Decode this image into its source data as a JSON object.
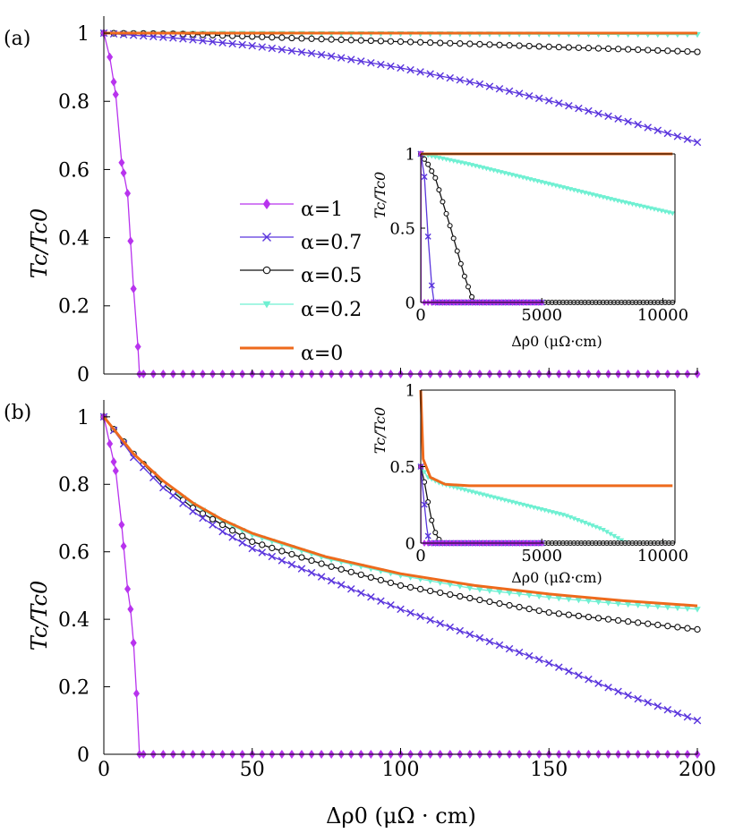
{
  "colors": {
    "a1": "#b833ee",
    "a07": "#5a35dd",
    "a05": "#111111",
    "a02": "#6ff0d2",
    "a0": "#ee6a1c"
  },
  "legend": [
    {
      "key": "a1",
      "label": "α=1",
      "marker": "diamond"
    },
    {
      "key": "a07",
      "label": "α=0.7",
      "marker": "x"
    },
    {
      "key": "a05",
      "label": "α=0.5",
      "marker": "circle"
    },
    {
      "key": "a02",
      "label": "α=0.2",
      "marker": "triangle"
    },
    {
      "key": "a0",
      "label": "α=0",
      "marker": "none"
    }
  ],
  "labels": {
    "panel_a": "(a)",
    "panel_b": "(b)",
    "ylabel": "Tc/Tc0",
    "xlabel": "Δρ0 (μΩ · cm)",
    "inset_ylabel": "Tc/Tc0",
    "inset_xlabel": "Δρ0 (μΩ·cm)"
  },
  "chart_data": [
    {
      "panel": "a",
      "type": "line",
      "xlim": [
        0,
        200
      ],
      "ylim": [
        0,
        1.05
      ],
      "xticks": [
        0,
        50,
        100,
        150,
        200
      ],
      "yticks": [
        0,
        0.2,
        0.4,
        0.6,
        0.8,
        1
      ],
      "xticklabels": [
        "0",
        "50",
        "100",
        "150",
        "200"
      ],
      "yticklabels": [
        "0",
        "0.2",
        "0.4",
        "0.6",
        "0.8",
        "1"
      ],
      "series": [
        {
          "key": "a1",
          "name": "α=1",
          "points": [
            [
              0,
              1.0
            ],
            [
              2,
              0.93
            ],
            [
              4,
              0.82
            ],
            [
              6,
              0.62
            ],
            [
              8,
              0.53
            ],
            [
              9,
              0.39
            ],
            [
              10,
              0.25
            ],
            [
              11.5,
              0.08
            ],
            [
              12,
              0.0
            ],
            [
              200,
              0.0
            ]
          ]
        },
        {
          "key": "a07",
          "name": "α=0.7",
          "points": [
            [
              0,
              1.0
            ],
            [
              25,
              0.985
            ],
            [
              50,
              0.963
            ],
            [
              75,
              0.935
            ],
            [
              100,
              0.898
            ],
            [
              125,
              0.854
            ],
            [
              150,
              0.802
            ],
            [
              175,
              0.745
            ],
            [
              200,
              0.68
            ]
          ]
        },
        {
          "key": "a05",
          "name": "α=0.5",
          "points": [
            [
              0,
              1.0
            ],
            [
              25,
              0.998
            ],
            [
              50,
              0.99
            ],
            [
              75,
              0.982
            ],
            [
              100,
              0.975
            ],
            [
              125,
              0.968
            ],
            [
              150,
              0.96
            ],
            [
              175,
              0.953
            ],
            [
              200,
              0.945
            ]
          ]
        },
        {
          "key": "a02",
          "name": "α=0.2",
          "points": [
            [
              0,
              1.0
            ],
            [
              50,
              0.999
            ],
            [
              100,
              0.998
            ],
            [
              150,
              0.997
            ],
            [
              200,
              0.996
            ]
          ]
        },
        {
          "key": "a0",
          "name": "α=0",
          "points": [
            [
              0,
              1.0
            ],
            [
              200,
              1.0
            ]
          ]
        }
      ]
    },
    {
      "panel": "a-inset",
      "type": "line",
      "xlim": [
        0,
        10500
      ],
      "ylim": [
        0,
        1.0
      ],
      "xticks": [
        0,
        5000,
        10000
      ],
      "yticks": [
        0,
        0.5,
        1
      ],
      "xticklabels": [
        "0",
        "5000",
        "10000"
      ],
      "yticklabels": [
        "0",
        "0.5",
        "1"
      ],
      "series": [
        {
          "key": "a1",
          "name": "α=1",
          "points": [
            [
              0,
              1.0
            ],
            [
              12,
              1.0
            ],
            [
              14,
              0.0
            ],
            [
              5000,
              0.0
            ]
          ]
        },
        {
          "key": "a07",
          "name": "α=0.7",
          "points": [
            [
              0,
              1.0
            ],
            [
              150,
              0.85
            ],
            [
              300,
              0.45
            ],
            [
              450,
              0.12
            ],
            [
              550,
              0.0
            ],
            [
              5000,
              0.0
            ]
          ]
        },
        {
          "key": "a05",
          "name": "α=0.5",
          "points": [
            [
              0,
              1.0
            ],
            [
              300,
              0.93
            ],
            [
              600,
              0.84
            ],
            [
              900,
              0.68
            ],
            [
              1200,
              0.52
            ],
            [
              1500,
              0.35
            ],
            [
              1800,
              0.18
            ],
            [
              2100,
              0.04
            ],
            [
              2250,
              0.0
            ],
            [
              10400,
              0.0
            ]
          ]
        },
        {
          "key": "a02",
          "name": "α=0.2",
          "points": [
            [
              0,
              1.0
            ],
            [
              2000,
              0.93
            ],
            [
              4000,
              0.85
            ],
            [
              6000,
              0.77
            ],
            [
              8000,
              0.69
            ],
            [
              10400,
              0.6
            ]
          ]
        },
        {
          "key": "a0",
          "name": "α=0",
          "points": [
            [
              0,
              1.0
            ],
            [
              10400,
              1.0
            ]
          ]
        }
      ]
    },
    {
      "panel": "b",
      "type": "line",
      "xlim": [
        0,
        200
      ],
      "ylim": [
        0,
        1.05
      ],
      "xticks": [
        0,
        50,
        100,
        150,
        200
      ],
      "yticks": [
        0,
        0.2,
        0.4,
        0.6,
        0.8,
        1
      ],
      "xticklabels": [
        "0",
        "50",
        "100",
        "150",
        "200"
      ],
      "yticklabels": [
        "0",
        "0.2",
        "0.4",
        "0.6",
        "0.8",
        "1"
      ],
      "series": [
        {
          "key": "a1",
          "name": "α=1",
          "points": [
            [
              0,
              1.0
            ],
            [
              2,
              0.92
            ],
            [
              4,
              0.84
            ],
            [
              6,
              0.68
            ],
            [
              8,
              0.49
            ],
            [
              9,
              0.43
            ],
            [
              10,
              0.33
            ],
            [
              11,
              0.18
            ],
            [
              12,
              0.0
            ],
            [
              200,
              0.0
            ]
          ]
        },
        {
          "key": "a07",
          "name": "α=0.7",
          "points": [
            [
              0,
              1.0
            ],
            [
              10,
              0.88
            ],
            [
              20,
              0.79
            ],
            [
              30,
              0.72
            ],
            [
              40,
              0.66
            ],
            [
              50,
              0.61
            ],
            [
              75,
              0.52
            ],
            [
              100,
              0.43
            ],
            [
              125,
              0.35
            ],
            [
              150,
              0.27
            ],
            [
              175,
              0.18
            ],
            [
              200,
              0.1
            ]
          ]
        },
        {
          "key": "a05",
          "name": "α=0.5",
          "points": [
            [
              0,
              1.0
            ],
            [
              10,
              0.89
            ],
            [
              20,
              0.8
            ],
            [
              30,
              0.73
            ],
            [
              40,
              0.68
            ],
            [
              50,
              0.63
            ],
            [
              75,
              0.56
            ],
            [
              100,
              0.5
            ],
            [
              125,
              0.46
            ],
            [
              150,
              0.42
            ],
            [
              175,
              0.395
            ],
            [
              200,
              0.37
            ]
          ]
        },
        {
          "key": "a02",
          "name": "α=0.2",
          "points": [
            [
              0,
              1.0
            ],
            [
              10,
              0.89
            ],
            [
              20,
              0.8
            ],
            [
              30,
              0.74
            ],
            [
              40,
              0.69
            ],
            [
              50,
              0.65
            ],
            [
              75,
              0.58
            ],
            [
              100,
              0.53
            ],
            [
              125,
              0.49
            ],
            [
              150,
              0.465
            ],
            [
              175,
              0.445
            ],
            [
              200,
              0.43
            ]
          ]
        },
        {
          "key": "a0",
          "name": "α=0",
          "points": [
            [
              0,
              1.0
            ],
            [
              10,
              0.89
            ],
            [
              20,
              0.81
            ],
            [
              30,
              0.745
            ],
            [
              40,
              0.695
            ],
            [
              50,
              0.655
            ],
            [
              75,
              0.585
            ],
            [
              100,
              0.535
            ],
            [
              125,
              0.5
            ],
            [
              150,
              0.475
            ],
            [
              175,
              0.455
            ],
            [
              200,
              0.44
            ]
          ]
        }
      ]
    },
    {
      "panel": "b-inset",
      "type": "line",
      "xlim": [
        0,
        10500
      ],
      "ylim": [
        0,
        1.0
      ],
      "xticks": [
        0,
        5000,
        10000
      ],
      "yticks": [
        0,
        0.5,
        1
      ],
      "xticklabels": [
        "0",
        "5000",
        "10000"
      ],
      "yticklabels": [
        "0",
        "0.5",
        "1"
      ],
      "series": [
        {
          "key": "a1",
          "name": "α=1",
          "points": [
            [
              0,
              0.5
            ],
            [
              10,
              0.0
            ],
            [
              5000,
              0.0
            ]
          ]
        },
        {
          "key": "a07",
          "name": "α=0.7",
          "points": [
            [
              0,
              0.5
            ],
            [
              120,
              0.3
            ],
            [
              250,
              0.1
            ],
            [
              350,
              0.0
            ],
            [
              5000,
              0.0
            ]
          ]
        },
        {
          "key": "a05",
          "name": "α=0.5",
          "points": [
            [
              0,
              0.5
            ],
            [
              150,
              0.4
            ],
            [
              300,
              0.27
            ],
            [
              450,
              0.15
            ],
            [
              600,
              0.07
            ],
            [
              800,
              0.01
            ],
            [
              900,
              0.0
            ],
            [
              10400,
              0.0
            ]
          ]
        },
        {
          "key": "a02",
          "name": "α=0.2",
          "points": [
            [
              0,
              0.5
            ],
            [
              300,
              0.43
            ],
            [
              800,
              0.39
            ],
            [
              2000,
              0.34
            ],
            [
              4000,
              0.26
            ],
            [
              6000,
              0.18
            ],
            [
              7500,
              0.09
            ],
            [
              8500,
              0.0
            ],
            [
              10400,
              0.0
            ]
          ]
        },
        {
          "key": "a0",
          "name": "α=0",
          "points": [
            [
              0,
              1.0
            ],
            [
              100,
              0.55
            ],
            [
              400,
              0.43
            ],
            [
              1000,
              0.385
            ],
            [
              2000,
              0.375
            ],
            [
              10400,
              0.375
            ]
          ]
        }
      ]
    }
  ]
}
